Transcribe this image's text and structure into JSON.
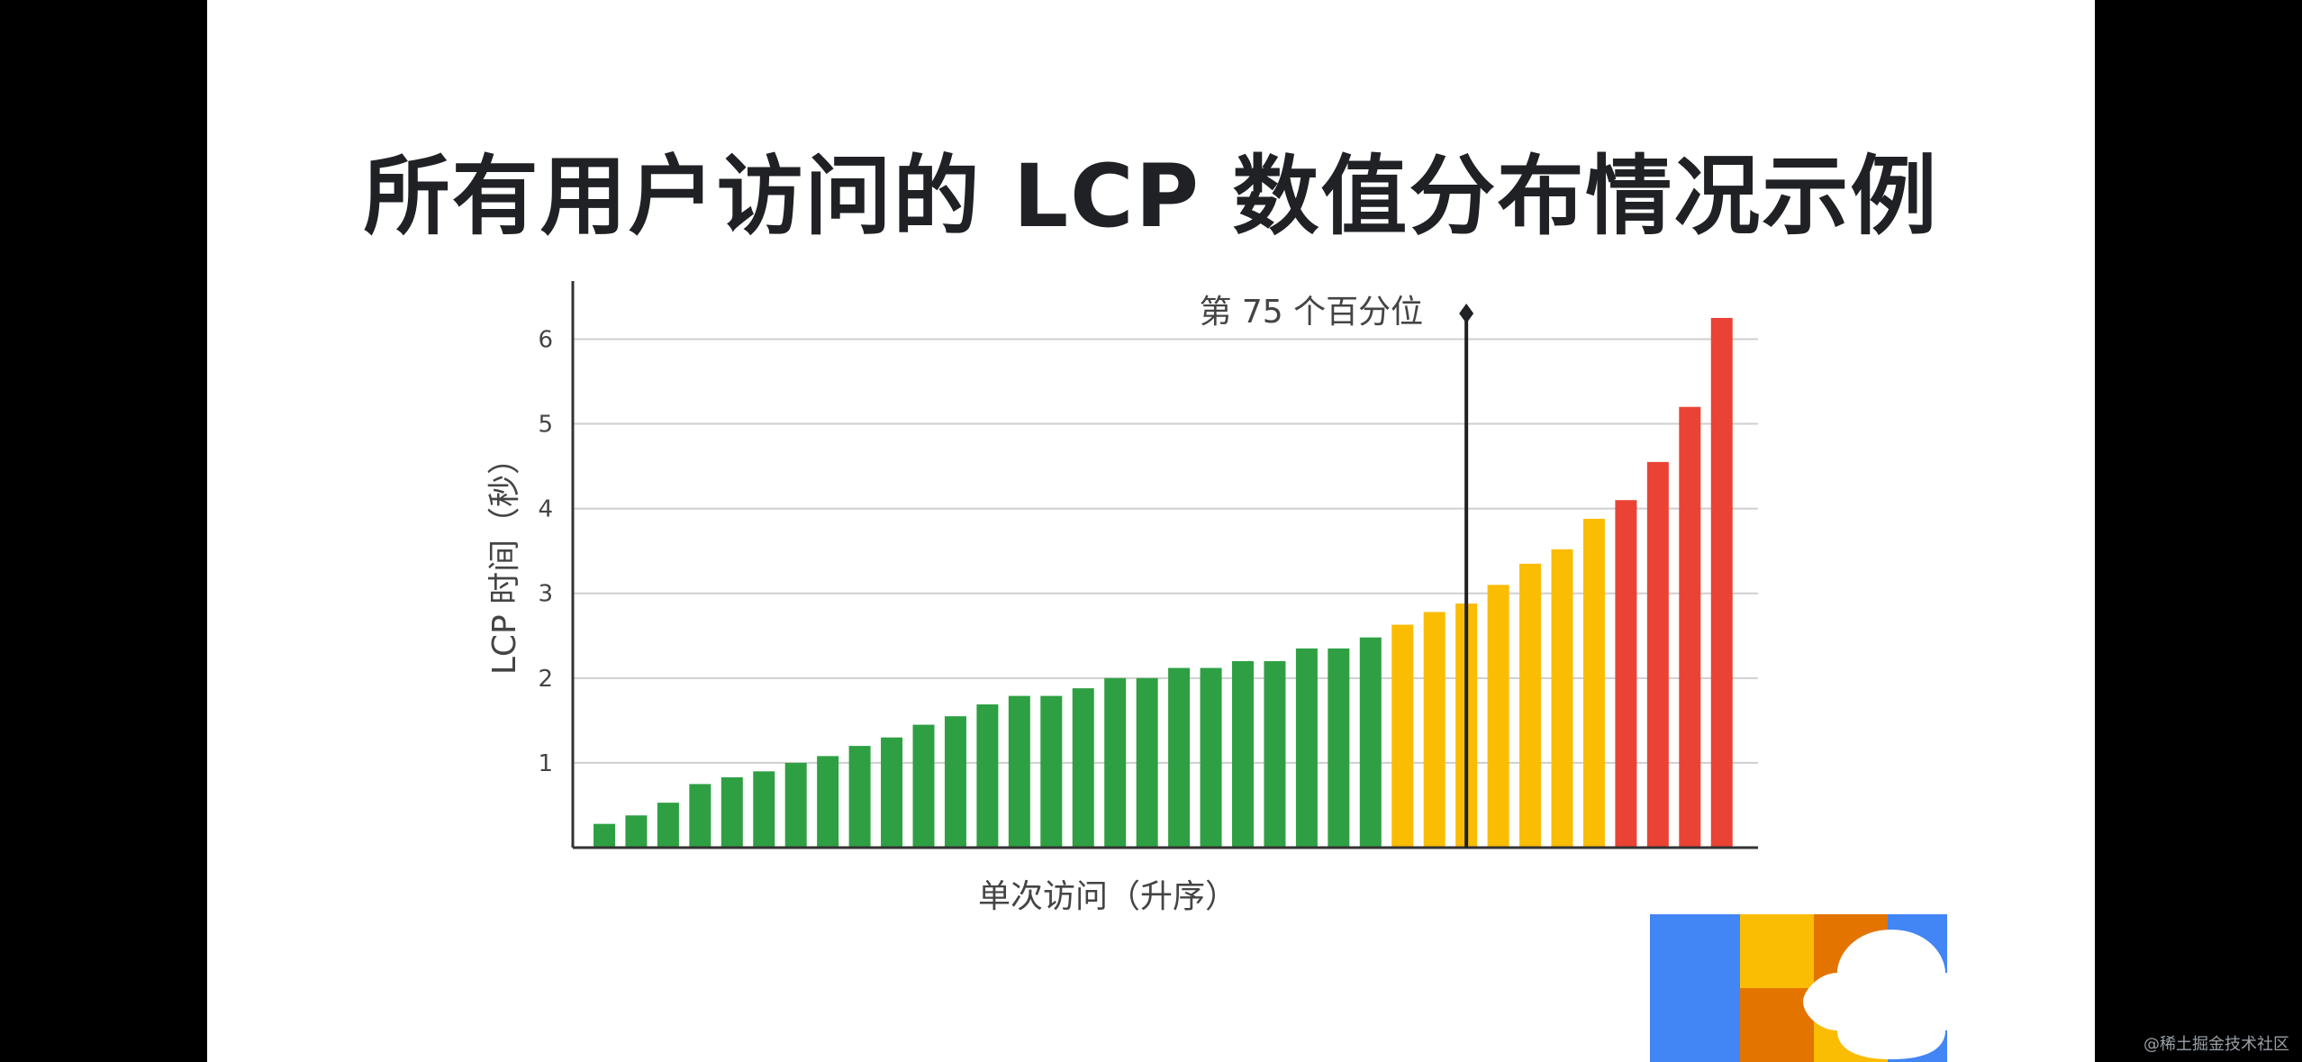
{
  "title": "所有用户访问的 LCP 数值分布情况示例",
  "watermark": "@稀土掘金技术社区",
  "chart_data": {
    "type": "bar",
    "ylabel": "LCP 时间（秒）",
    "xlabel": "单次访问（升序）",
    "ylim": [
      0,
      6.6
    ],
    "yticks": [
      1,
      2,
      3,
      4,
      5,
      6
    ],
    "grid": true,
    "percentile_marker": {
      "label": "第 75 个百分位",
      "bar_index": 27
    },
    "colors": {
      "good": "#2ea043",
      "needs_improvement": "#fbbc04",
      "poor": "#ea4335",
      "axis": "#333333",
      "grid": "#cfcfcf",
      "marker": "#202124"
    },
    "values": [
      0.28,
      0.38,
      0.53,
      0.75,
      0.83,
      0.9,
      1.0,
      1.08,
      1.2,
      1.3,
      1.45,
      1.55,
      1.69,
      1.79,
      1.79,
      1.88,
      2.0,
      2.0,
      2.12,
      2.12,
      2.2,
      2.2,
      2.35,
      2.35,
      2.48,
      2.63,
      2.78,
      2.88,
      3.1,
      3.35,
      3.52,
      3.88,
      4.1,
      4.55,
      5.2,
      6.25
    ],
    "categories": [
      "good",
      "good",
      "good",
      "good",
      "good",
      "good",
      "good",
      "good",
      "good",
      "good",
      "good",
      "good",
      "good",
      "good",
      "good",
      "good",
      "good",
      "good",
      "good",
      "good",
      "good",
      "good",
      "good",
      "good",
      "good",
      "needs_improvement",
      "needs_improvement",
      "needs_improvement",
      "needs_improvement",
      "needs_improvement",
      "needs_improvement",
      "needs_improvement",
      "poor",
      "poor",
      "poor",
      "poor"
    ]
  },
  "logo": {
    "blue": "#4285f4",
    "yellow": "#fbbc04",
    "orange": "#e37400",
    "white": "#ffffff"
  }
}
